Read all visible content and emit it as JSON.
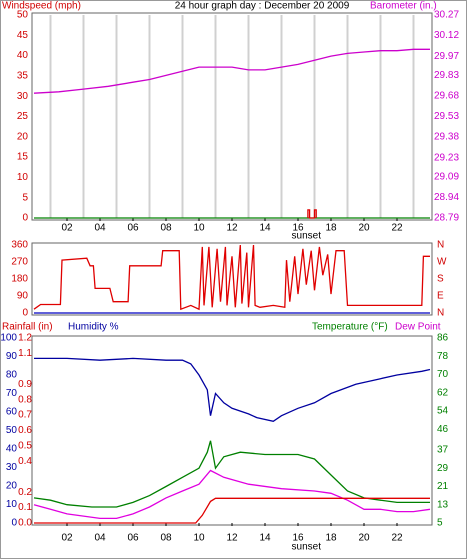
{
  "chart_data": [
    {
      "type": "line",
      "title": "24 hour graph day : December 20 2009",
      "ylabel": "Windspeed (mph)",
      "y2label": "Barometer (in.)",
      "xlim": [
        0,
        24
      ],
      "xticks": [
        {
          "value": 2,
          "label": "02"
        },
        {
          "value": 4,
          "label": "04"
        },
        {
          "value": 6,
          "label": "06"
        },
        {
          "value": 8,
          "label": "08"
        },
        {
          "value": 10,
          "label": "10"
        },
        {
          "value": 12,
          "label": "12"
        },
        {
          "value": 14,
          "label": "14"
        },
        {
          "value": 16,
          "label": "16"
        },
        {
          "value": 18,
          "label": "18"
        },
        {
          "value": 20,
          "label": "20"
        },
        {
          "value": 22,
          "label": "22"
        }
      ],
      "xgrid": [
        1,
        3,
        5,
        7,
        9,
        11,
        13,
        15,
        17,
        19,
        21,
        23
      ],
      "ylim": [
        0,
        50
      ],
      "yticks": [
        0,
        5,
        10,
        15,
        20,
        25,
        30,
        35,
        40,
        45,
        50
      ],
      "y2lim": [
        28.79,
        30.27
      ],
      "y2ticks": [
        28.79,
        28.94,
        29.09,
        29.23,
        29.38,
        29.53,
        29.68,
        29.83,
        29.97,
        30.12,
        30.27
      ],
      "annotation": {
        "text": "sunset",
        "x": 16.5
      },
      "series": [
        {
          "name": "Barometer (in.)",
          "color": "#cc00cc",
          "axis": "y2",
          "x": [
            0,
            1.5,
            3,
            4.5,
            6,
            7,
            8,
            9,
            10,
            11,
            12,
            13,
            14,
            15,
            16,
            17,
            18,
            19,
            20,
            21,
            22,
            23,
            24
          ],
          "values": [
            29.7,
            29.71,
            29.73,
            29.75,
            29.78,
            29.8,
            29.83,
            29.86,
            29.89,
            29.89,
            29.89,
            29.87,
            29.87,
            29.89,
            29.91,
            29.94,
            29.97,
            29.99,
            30.0,
            30.01,
            30.01,
            30.02,
            30.02
          ]
        },
        {
          "name": "Windspeed (mph)",
          "color": "#008000",
          "x": [
            0,
            24
          ],
          "values": [
            0,
            0
          ]
        },
        {
          "color": "#e00000",
          "x": [
            16.6,
            16.6,
            16.7,
            16.7,
            17.0,
            17.0,
            17.1,
            17.1
          ],
          "values": [
            0,
            2,
            2,
            0,
            0,
            2,
            2,
            0
          ]
        }
      ]
    },
    {
      "type": "line",
      "xlim": [
        0,
        24
      ],
      "ylim": [
        0,
        360
      ],
      "yticks": [
        0,
        90,
        180,
        270,
        360
      ],
      "y2lim": [
        0,
        360
      ],
      "y2ticks": [
        {
          "value": 360,
          "label": "N"
        },
        {
          "value": 270,
          "label": "W"
        },
        {
          "value": 180,
          "label": "S"
        },
        {
          "value": 90,
          "label": "E"
        },
        {
          "value": 0,
          "label": "N"
        }
      ],
      "series": [
        {
          "color": "#0000c0",
          "x": [
            0,
            24
          ],
          "values": [
            0,
            0
          ]
        },
        {
          "color": "#e00000",
          "x": [
            0,
            0.4,
            1.6,
            1.7,
            3.2,
            3.4,
            3.6,
            3.7,
            4.6,
            4.8,
            5.7,
            5.8,
            7.7,
            7.8,
            8.8,
            8.9,
            9.5,
            10,
            10.2,
            10.3,
            10.6,
            10.8,
            11.1,
            11.3,
            11.6,
            11.7,
            12,
            12.2,
            12.5,
            12.6,
            12.9,
            13,
            13.3,
            13.4,
            13.7,
            14.5,
            15.2,
            15.3,
            15.5,
            15.8,
            16,
            16.3,
            16.5,
            16.8,
            17,
            17.3,
            17.5,
            17.8,
            18,
            18.3,
            18.8,
            19,
            23.5,
            23.6,
            24
          ],
          "values": [
            20,
            45,
            45,
            280,
            290,
            250,
            250,
            130,
            130,
            60,
            60,
            250,
            250,
            330,
            330,
            20,
            40,
            20,
            350,
            40,
            350,
            30,
            340,
            60,
            350,
            40,
            300,
            30,
            360,
            50,
            320,
            30,
            360,
            40,
            30,
            40,
            30,
            280,
            60,
            300,
            100,
            340,
            150,
            330,
            120,
            350,
            200,
            310,
            100,
            330,
            330,
            40,
            40,
            300,
            300
          ]
        }
      ]
    },
    {
      "type": "line",
      "y3label": "Rainfall (in)",
      "ylabel": "Humidity %",
      "y2label": "Temperature (°F)",
      "y2label2": "Dew Point",
      "xlim": [
        0,
        24
      ],
      "xticks": [
        {
          "value": 2,
          "label": "02"
        },
        {
          "value": 4,
          "label": "04"
        },
        {
          "value": 6,
          "label": "06"
        },
        {
          "value": 8,
          "label": "08"
        },
        {
          "value": 10,
          "label": "10"
        },
        {
          "value": 12,
          "label": "12"
        },
        {
          "value": 14,
          "label": "14"
        },
        {
          "value": 16,
          "label": "16"
        },
        {
          "value": 18,
          "label": "18"
        },
        {
          "value": 20,
          "label": "20"
        },
        {
          "value": 22,
          "label": "22"
        }
      ],
      "ylim": [
        0,
        100
      ],
      "yticks": [
        0,
        10,
        20,
        30,
        40,
        50,
        60,
        70,
        80,
        90,
        100
      ],
      "y3lim": [
        0,
        1.2
      ],
      "y3ticks": [
        {
          "value": 0,
          "label": "0.0"
        },
        0.1,
        0.2,
        0.4,
        0.5,
        0.6,
        0.7,
        0.8,
        0.9,
        1.1,
        1.2
      ],
      "y2lim": [
        5,
        86
      ],
      "y2ticks": [
        5,
        13,
        21,
        29,
        37,
        46,
        54,
        62,
        70,
        78,
        86
      ],
      "annotation": {
        "text": "sunset",
        "x": 16.5
      },
      "series": [
        {
          "name": "Humidity %",
          "color": "#0000a0",
          "x": [
            0,
            2,
            4,
            6,
            8,
            9,
            9.5,
            10,
            10.5,
            10.7,
            11,
            11.5,
            12,
            13,
            13.5,
            14.5,
            15,
            16,
            17,
            18,
            19.5,
            21,
            22,
            23.5,
            24
          ],
          "values": [
            89,
            89,
            88,
            89,
            88,
            88,
            86,
            80,
            72,
            58,
            70,
            65,
            62,
            59,
            57,
            55,
            58,
            62,
            65,
            70,
            75,
            78,
            80,
            82,
            83
          ]
        },
        {
          "name": "Temperature (°F)",
          "color": "#008000",
          "axis": "y2",
          "x": [
            0,
            1,
            2,
            3.5,
            5,
            6,
            7,
            8,
            9,
            10,
            10.5,
            10.7,
            11,
            11.5,
            12.5,
            14,
            16,
            17,
            18,
            19,
            20,
            21,
            22,
            23,
            24
          ],
          "values": [
            16,
            15,
            13,
            12,
            12,
            14,
            17,
            21,
            25,
            29,
            36,
            41,
            29,
            34,
            36,
            35,
            35,
            33,
            26,
            19,
            16,
            15,
            14,
            14,
            14
          ]
        },
        {
          "name": "Dew Point",
          "color": "#e000e0",
          "axis": "y2",
          "x": [
            0,
            1,
            2,
            4,
            5,
            6,
            7,
            8,
            9,
            10,
            10.7,
            11.5,
            13,
            15,
            17,
            18,
            19,
            20,
            21,
            22,
            23,
            24
          ],
          "values": [
            13,
            11,
            9,
            7,
            7,
            9,
            12,
            16,
            19,
            22,
            28,
            25,
            22,
            20,
            19,
            18,
            15,
            11,
            11,
            10,
            10,
            11
          ]
        },
        {
          "name": "Rainfall (in)",
          "color": "#e00000",
          "axis": "y3",
          "x": [
            0,
            9.8,
            10.2,
            10.7,
            11,
            24
          ],
          "values": [
            0,
            0,
            0.05,
            0.14,
            0.16,
            0.16
          ]
        }
      ]
    }
  ]
}
